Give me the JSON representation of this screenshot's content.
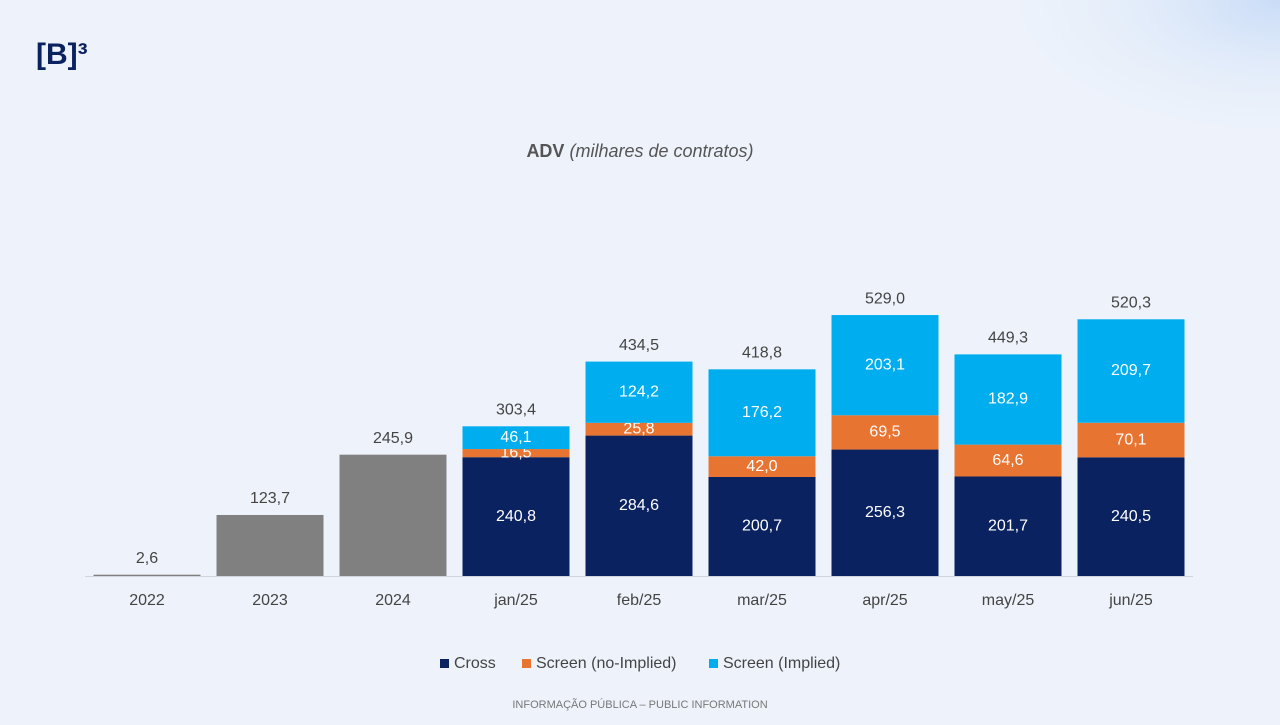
{
  "logo": "[B]³",
  "footer": "INFORMAÇÃO PÚBLICA – PUBLIC INFORMATION",
  "chart_data": {
    "type": "bar",
    "title": "ADV",
    "subtitle": "(milhares de contratos)",
    "categories": [
      "2022",
      "2023",
      "2024",
      "jan/25",
      "feb/25",
      "mar/25",
      "apr/25",
      "may/25",
      "jun/25"
    ],
    "values": [
      2.6,
      123.7,
      245.9,
      303.4,
      434.5,
      418.8,
      529.0,
      449.3,
      520.3
    ],
    "value_labels": [
      "2,6",
      "123,7",
      "245,9",
      "303,4",
      "434,5",
      "418,8",
      "529,0",
      "449,3",
      "520,3"
    ],
    "color": "#808080",
    "series": [
      {
        "name": "Cross",
        "color": "#0b2260",
        "values": [
          null,
          null,
          null,
          240.8,
          284.6,
          200.7,
          256.3,
          201.7,
          240.5
        ],
        "value_labels": [
          null,
          null,
          null,
          "240,8",
          "284,6",
          "200,7",
          "256,3",
          "201,7",
          "240,5"
        ]
      },
      {
        "name": "Screen (no-Implied)",
        "color": "#e87431",
        "values": [
          null,
          null,
          null,
          16.5,
          25.8,
          42.0,
          69.5,
          64.6,
          70.1
        ],
        "value_labels": [
          null,
          null,
          null,
          "16,5",
          "25,8",
          "42,0",
          "69,5",
          "64,6",
          "70,1"
        ]
      },
      {
        "name": "Screen (Implied)",
        "color": "#00aeef",
        "values": [
          null,
          null,
          null,
          46.1,
          124.2,
          176.2,
          203.1,
          182.9,
          209.7
        ],
        "value_labels": [
          null,
          null,
          null,
          "46,1",
          "124,2",
          "176,2",
          "203,1",
          "182,9",
          "209,7"
        ]
      }
    ],
    "legend": "bottom"
  }
}
